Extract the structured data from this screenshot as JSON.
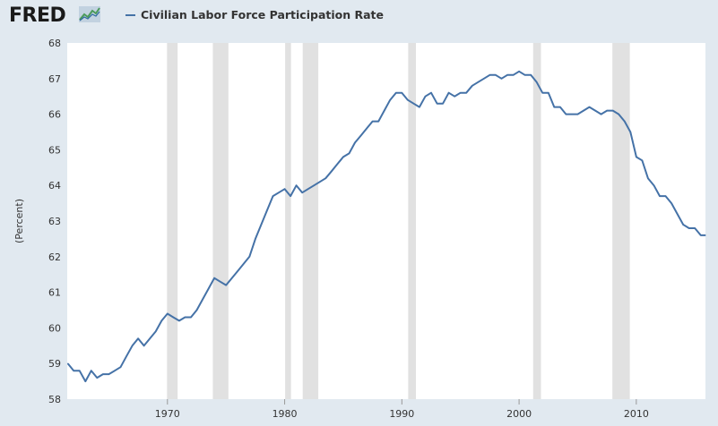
{
  "header": {
    "logo": "FRED",
    "logo_icon": "line-chart-icon"
  },
  "colors": {
    "series": "#4572a7",
    "recession": "#e1e1e1",
    "background": "#e1e9f0",
    "plot": "#ffffff"
  },
  "chart_data": {
    "type": "line",
    "title": "",
    "xlabel": "",
    "ylabel": "(Percent)",
    "xlim": [
      1961.45,
      2015.9
    ],
    "ylim": [
      58,
      68
    ],
    "yticks": [
      58,
      59,
      60,
      61,
      62,
      63,
      64,
      65,
      66,
      67,
      68
    ],
    "xticks": [
      1970,
      1980,
      1990,
      2000,
      2010
    ],
    "grid": false,
    "legend": "top-left",
    "recessions": [
      [
        1969.96,
        1970.87
      ],
      [
        1973.87,
        1975.2
      ],
      [
        1980.04,
        1980.54
      ],
      [
        1981.54,
        1982.87
      ],
      [
        1990.54,
        1991.2
      ],
      [
        2001.2,
        2001.87
      ],
      [
        2007.96,
        2009.45
      ]
    ],
    "series": [
      {
        "name": "Civilian Labor Force Participation Rate",
        "x": [
          1961.5,
          1962.0,
          1962.5,
          1963.0,
          1963.5,
          1964.0,
          1964.5,
          1965.0,
          1965.5,
          1966.0,
          1966.5,
          1967.0,
          1967.5,
          1968.0,
          1968.5,
          1969.0,
          1969.5,
          1970.0,
          1970.5,
          1971.0,
          1971.5,
          1972.0,
          1972.5,
          1973.0,
          1973.5,
          1974.0,
          1974.5,
          1975.0,
          1975.5,
          1976.0,
          1976.5,
          1977.0,
          1977.5,
          1978.0,
          1978.5,
          1979.0,
          1979.5,
          1980.0,
          1980.5,
          1981.0,
          1981.5,
          1982.0,
          1982.5,
          1983.0,
          1983.5,
          1984.0,
          1984.5,
          1985.0,
          1985.5,
          1986.0,
          1986.5,
          1987.0,
          1987.5,
          1988.0,
          1988.5,
          1989.0,
          1989.5,
          1990.0,
          1990.5,
          1991.0,
          1991.5,
          1992.0,
          1992.5,
          1993.0,
          1993.5,
          1994.0,
          1994.5,
          1995.0,
          1995.5,
          1996.0,
          1996.5,
          1997.0,
          1997.5,
          1998.0,
          1998.5,
          1999.0,
          1999.5,
          2000.0,
          2000.5,
          2001.0,
          2001.5,
          2002.0,
          2002.5,
          2003.0,
          2003.5,
          2004.0,
          2004.5,
          2005.0,
          2005.5,
          2006.0,
          2006.5,
          2007.0,
          2007.5,
          2008.0,
          2008.5,
          2009.0,
          2009.5,
          2010.0,
          2010.5,
          2011.0,
          2011.5,
          2012.0,
          2012.5,
          2013.0,
          2013.5,
          2014.0,
          2014.5,
          2015.0,
          2015.5,
          2015.9
        ],
        "y": [
          59.0,
          58.8,
          58.8,
          58.5,
          58.8,
          58.6,
          58.7,
          58.7,
          58.8,
          58.9,
          59.2,
          59.5,
          59.7,
          59.5,
          59.7,
          59.9,
          60.2,
          60.4,
          60.3,
          60.2,
          60.3,
          60.3,
          60.5,
          60.8,
          61.1,
          61.4,
          61.3,
          61.2,
          61.4,
          61.6,
          61.8,
          62.0,
          62.5,
          62.9,
          63.3,
          63.7,
          63.8,
          63.9,
          63.7,
          64.0,
          63.8,
          63.9,
          64.0,
          64.1,
          64.2,
          64.4,
          64.6,
          64.8,
          64.9,
          65.2,
          65.4,
          65.6,
          65.8,
          65.8,
          66.1,
          66.4,
          66.6,
          66.6,
          66.4,
          66.3,
          66.2,
          66.5,
          66.6,
          66.3,
          66.3,
          66.6,
          66.5,
          66.6,
          66.6,
          66.8,
          66.9,
          67.0,
          67.1,
          67.1,
          67.0,
          67.1,
          67.1,
          67.2,
          67.1,
          67.1,
          66.9,
          66.6,
          66.6,
          66.2,
          66.2,
          66.0,
          66.0,
          66.0,
          66.1,
          66.2,
          66.1,
          66.0,
          66.1,
          66.1,
          66.0,
          65.8,
          65.5,
          64.8,
          64.7,
          64.2,
          64.0,
          63.7,
          63.7,
          63.5,
          63.2,
          62.9,
          62.8,
          62.8,
          62.6,
          62.6
        ]
      }
    ]
  }
}
